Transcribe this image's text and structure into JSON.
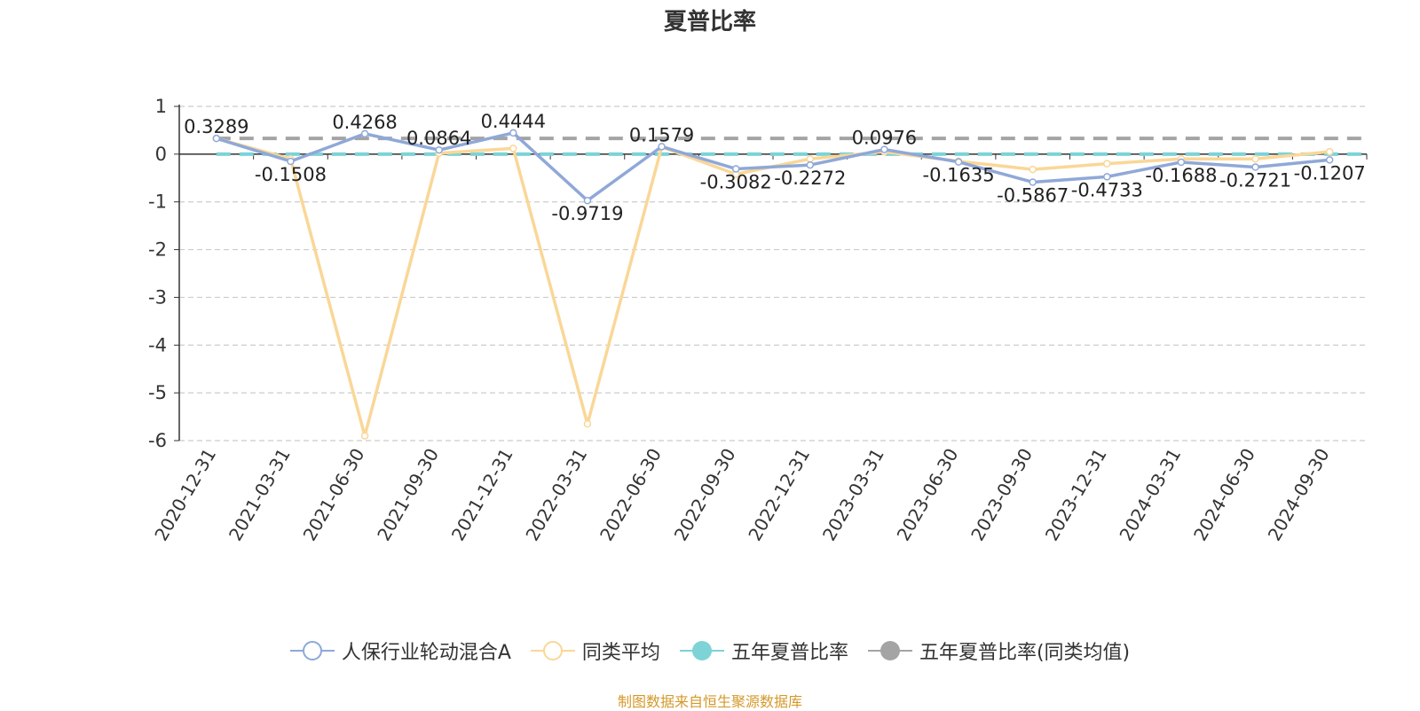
{
  "chart_data": {
    "type": "line",
    "title": "夏普比率",
    "categories": [
      "2020-12-31",
      "2021-03-31",
      "2021-06-30",
      "2021-09-30",
      "2021-12-31",
      "2022-03-31",
      "2022-06-30",
      "2022-09-30",
      "2022-12-31",
      "2023-03-31",
      "2023-06-30",
      "2023-09-30",
      "2023-12-31",
      "2024-03-31",
      "2024-06-30",
      "2024-09-30"
    ],
    "ylim": [
      -6,
      1
    ],
    "yticks": [
      "1",
      "0",
      "-1",
      "-2",
      "-3",
      "-4",
      "-5",
      "-6"
    ],
    "grid": true,
    "legend_position": "bottom",
    "series": [
      {
        "name": "人保行业轮动混合A",
        "color": "#8fa8d8",
        "symbol": "hollow-circle",
        "values": [
          0.3289,
          -0.1508,
          0.4268,
          0.0864,
          0.4444,
          -0.9719,
          0.1579,
          -0.3082,
          -0.2272,
          0.0976,
          -0.1635,
          -0.5867,
          -0.4733,
          -0.1688,
          -0.2721,
          -0.1207
        ],
        "labels": [
          "0.3289",
          "-0.1508",
          "0.4268",
          "0.0864",
          "0.4444",
          "-0.9719",
          "0.1579",
          "-0.3082",
          "-0.2272",
          "0.0976",
          "-0.1635",
          "-0.5867",
          "-0.4733",
          "-0.1688",
          "-0.2721",
          "-0.1207"
        ]
      },
      {
        "name": "同类平均",
        "color": "#fad797",
        "symbol": "hollow-circle",
        "values": [
          0.33,
          -0.1,
          -5.9,
          0.02,
          0.12,
          -5.65,
          0.15,
          -0.42,
          -0.1,
          0.05,
          -0.15,
          -0.32,
          -0.2,
          -0.1,
          -0.1,
          0.05
        ]
      },
      {
        "name": "五年夏普比率",
        "color": "#7dd3d6",
        "symbol": "filled-circle",
        "style": "dashed",
        "value": 0
      },
      {
        "name": "五年夏普比率(同类均值)",
        "color": "#a4a4a4",
        "symbol": "filled-circle",
        "style": "dashed",
        "value": 0.33
      }
    ],
    "source": "制图数据来自恒生聚源数据库"
  }
}
